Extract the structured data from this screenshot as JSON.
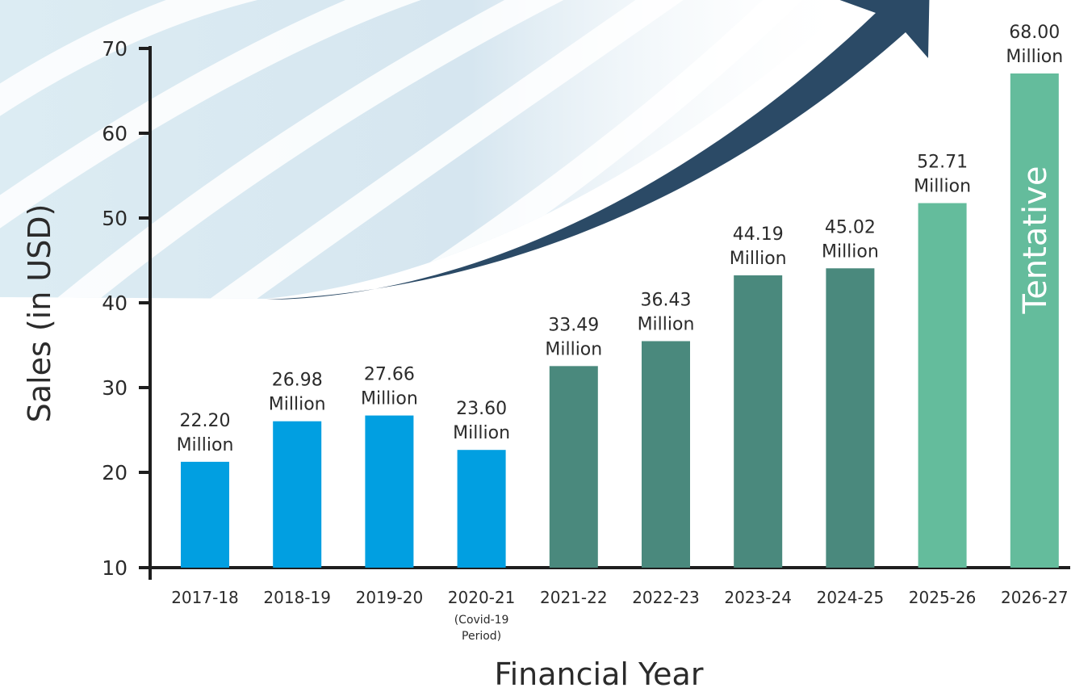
{
  "chart_data": {
    "type": "bar",
    "xlabel": "Financial Year",
    "ylabel": "Sales (in USD)",
    "ylim": [
      10,
      70
    ],
    "yticks": [
      10,
      20,
      30,
      40,
      50,
      60,
      70
    ],
    "categories": [
      "2017-18",
      "2018-19",
      "2019-20",
      "2020-21",
      "2021-22",
      "2022-23",
      "2023-24",
      "2024-25",
      "2025-26",
      "2026-27"
    ],
    "category_notes": [
      "",
      "",
      "",
      "(Covid-19 Period)",
      "",
      "",
      "",
      "",
      "",
      ""
    ],
    "values": [
      22.2,
      26.98,
      27.66,
      23.6,
      33.49,
      36.43,
      44.19,
      45.02,
      52.71,
      68.0
    ],
    "value_labels": [
      "22.20 Million",
      "26.98 Million",
      "27.66 Million",
      "23.60 Million",
      "33.49 Million",
      "36.43 Million",
      "44.19 Million",
      "45.02 Million",
      "52.71 Million",
      "68.00 Million"
    ],
    "bar_colors": [
      "#019fe1",
      "#019fe1",
      "#019fe1",
      "#019fe1",
      "#4a897d",
      "#4a897d",
      "#4a897d",
      "#4a897d",
      "#64bc9c",
      "#64bc9c"
    ],
    "bar_annotation": {
      "category": "2026-27",
      "text": "Tentative"
    },
    "arrow_color": "#2b4a66",
    "grid": false
  }
}
